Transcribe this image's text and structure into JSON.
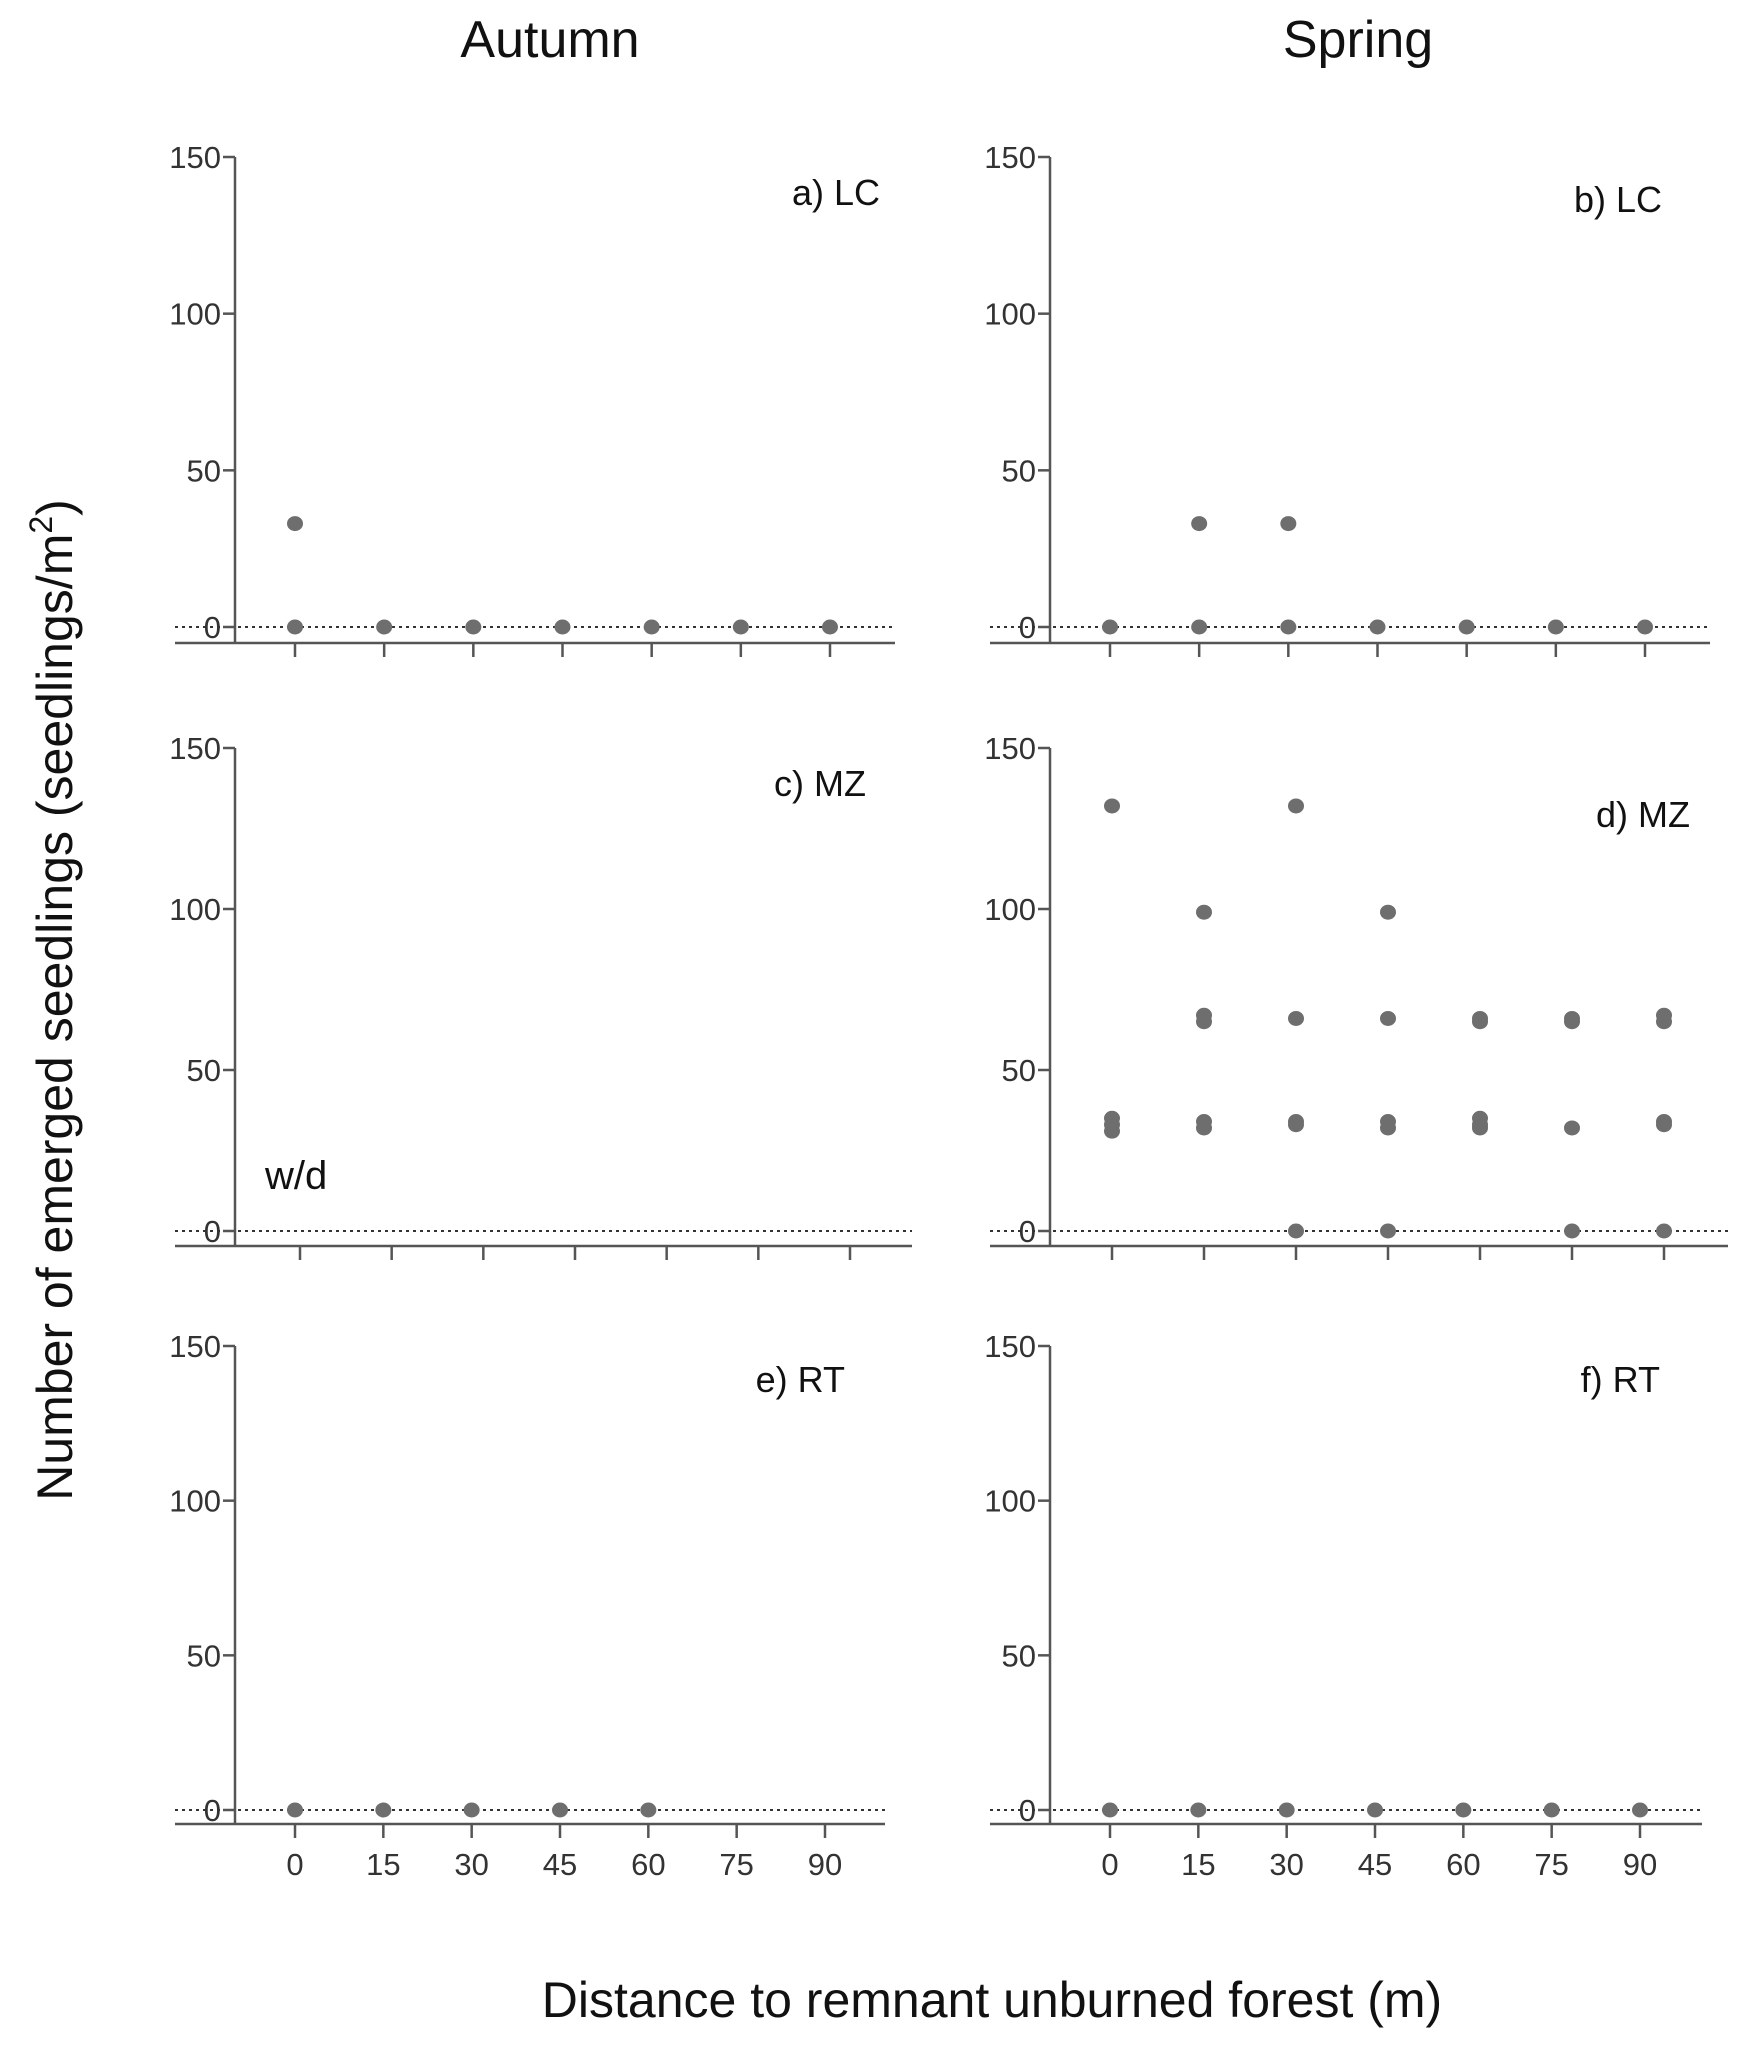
{
  "column_titles": [
    "Autumn",
    "Spring"
  ],
  "ylabel_main": "Number of emerged seedlings (seedlings/m",
  "ylabel_sup": "2",
  "ylabel_close": ")",
  "xlabel": "Distance to remnant unburned forest (m)",
  "colors": {
    "points": "#6e6e6e",
    "axes": "#555555",
    "text": "#111111"
  },
  "chart_data": [
    {
      "type": "scatter",
      "panel_label": "a) LC",
      "annotation": "",
      "x_ticks": [
        0,
        15,
        30,
        45,
        60,
        75,
        90
      ],
      "show_x_tick_labels": false,
      "y_ticks": [
        0,
        50,
        100,
        150
      ],
      "xlim": [
        -10,
        100
      ],
      "ylim": [
        0,
        150
      ],
      "zero_line": "dotted",
      "points": [
        {
          "x": 0,
          "y": 33
        },
        {
          "x": 0,
          "y": 0
        },
        {
          "x": 15,
          "y": 0
        },
        {
          "x": 30,
          "y": 0
        },
        {
          "x": 45,
          "y": 0
        },
        {
          "x": 60,
          "y": 0
        },
        {
          "x": 75,
          "y": 0
        },
        {
          "x": 90,
          "y": 0
        }
      ]
    },
    {
      "type": "scatter",
      "panel_label": "b) LC",
      "annotation": "",
      "x_ticks": [
        0,
        15,
        30,
        45,
        60,
        75,
        90
      ],
      "show_x_tick_labels": false,
      "y_ticks": [
        0,
        50,
        100,
        150
      ],
      "xlim": [
        -10,
        100
      ],
      "ylim": [
        0,
        150
      ],
      "zero_line": "dotted",
      "points": [
        {
          "x": 15,
          "y": 33
        },
        {
          "x": 30,
          "y": 33
        },
        {
          "x": 0,
          "y": 0
        },
        {
          "x": 15,
          "y": 0
        },
        {
          "x": 30,
          "y": 0
        },
        {
          "x": 45,
          "y": 0
        },
        {
          "x": 60,
          "y": 0
        },
        {
          "x": 75,
          "y": 0
        },
        {
          "x": 90,
          "y": 0
        }
      ]
    },
    {
      "type": "scatter",
      "panel_label": "c) MZ",
      "annotation": "w/d",
      "x_ticks": [
        0,
        15,
        30,
        45,
        60,
        75,
        90
      ],
      "show_x_tick_labels": false,
      "y_ticks": [
        0,
        50,
        100,
        150
      ],
      "xlim": [
        -10,
        100
      ],
      "ylim": [
        0,
        150
      ],
      "zero_line": "dotted",
      "points": []
    },
    {
      "type": "scatter",
      "panel_label": "d) MZ",
      "annotation": "",
      "x_ticks": [
        0,
        15,
        30,
        45,
        60,
        75,
        90
      ],
      "show_x_tick_labels": false,
      "y_ticks": [
        0,
        50,
        100,
        150
      ],
      "xlim": [
        -10,
        100
      ],
      "ylim": [
        0,
        150
      ],
      "zero_line": "dotted",
      "points": [
        {
          "x": 0,
          "y": 132
        },
        {
          "x": 0,
          "y": 35
        },
        {
          "x": 0,
          "y": 33
        },
        {
          "x": 0,
          "y": 31
        },
        {
          "x": 15,
          "y": 99
        },
        {
          "x": 15,
          "y": 67
        },
        {
          "x": 15,
          "y": 65
        },
        {
          "x": 15,
          "y": 34
        },
        {
          "x": 15,
          "y": 32
        },
        {
          "x": 30,
          "y": 132
        },
        {
          "x": 30,
          "y": 66
        },
        {
          "x": 30,
          "y": 34
        },
        {
          "x": 30,
          "y": 33
        },
        {
          "x": 30,
          "y": 0
        },
        {
          "x": 45,
          "y": 99
        },
        {
          "x": 45,
          "y": 66
        },
        {
          "x": 45,
          "y": 34
        },
        {
          "x": 45,
          "y": 32
        },
        {
          "x": 45,
          "y": 0
        },
        {
          "x": 60,
          "y": 66
        },
        {
          "x": 60,
          "y": 65
        },
        {
          "x": 60,
          "y": 35
        },
        {
          "x": 60,
          "y": 33
        },
        {
          "x": 60,
          "y": 32
        },
        {
          "x": 75,
          "y": 66
        },
        {
          "x": 75,
          "y": 65
        },
        {
          "x": 75,
          "y": 32
        },
        {
          "x": 75,
          "y": 0
        },
        {
          "x": 90,
          "y": 67
        },
        {
          "x": 90,
          "y": 65
        },
        {
          "x": 90,
          "y": 34
        },
        {
          "x": 90,
          "y": 33
        },
        {
          "x": 90,
          "y": 0
        }
      ]
    },
    {
      "type": "scatter",
      "panel_label": "e) RT",
      "annotation": "",
      "x_ticks": [
        0,
        15,
        30,
        45,
        60,
        75,
        90
      ],
      "show_x_tick_labels": true,
      "y_ticks": [
        0,
        50,
        100,
        150
      ],
      "xlim": [
        -10,
        100
      ],
      "ylim": [
        0,
        150
      ],
      "zero_line": "dotted",
      "points": [
        {
          "x": 0,
          "y": 0
        },
        {
          "x": 15,
          "y": 0
        },
        {
          "x": 30,
          "y": 0
        },
        {
          "x": 45,
          "y": 0
        },
        {
          "x": 60,
          "y": 0
        }
      ]
    },
    {
      "type": "scatter",
      "panel_label": "f) RT",
      "annotation": "",
      "x_ticks": [
        0,
        15,
        30,
        45,
        60,
        75,
        90
      ],
      "show_x_tick_labels": true,
      "y_ticks": [
        0,
        50,
        100,
        150
      ],
      "xlim": [
        -10,
        100
      ],
      "ylim": [
        0,
        150
      ],
      "zero_line": "dotted",
      "points": [
        {
          "x": 0,
          "y": 0
        },
        {
          "x": 15,
          "y": 0
        },
        {
          "x": 30,
          "y": 0
        },
        {
          "x": 45,
          "y": 0
        },
        {
          "x": 60,
          "y": 0
        },
        {
          "x": 75,
          "y": 0
        },
        {
          "x": 90,
          "y": 0
        }
      ]
    }
  ]
}
